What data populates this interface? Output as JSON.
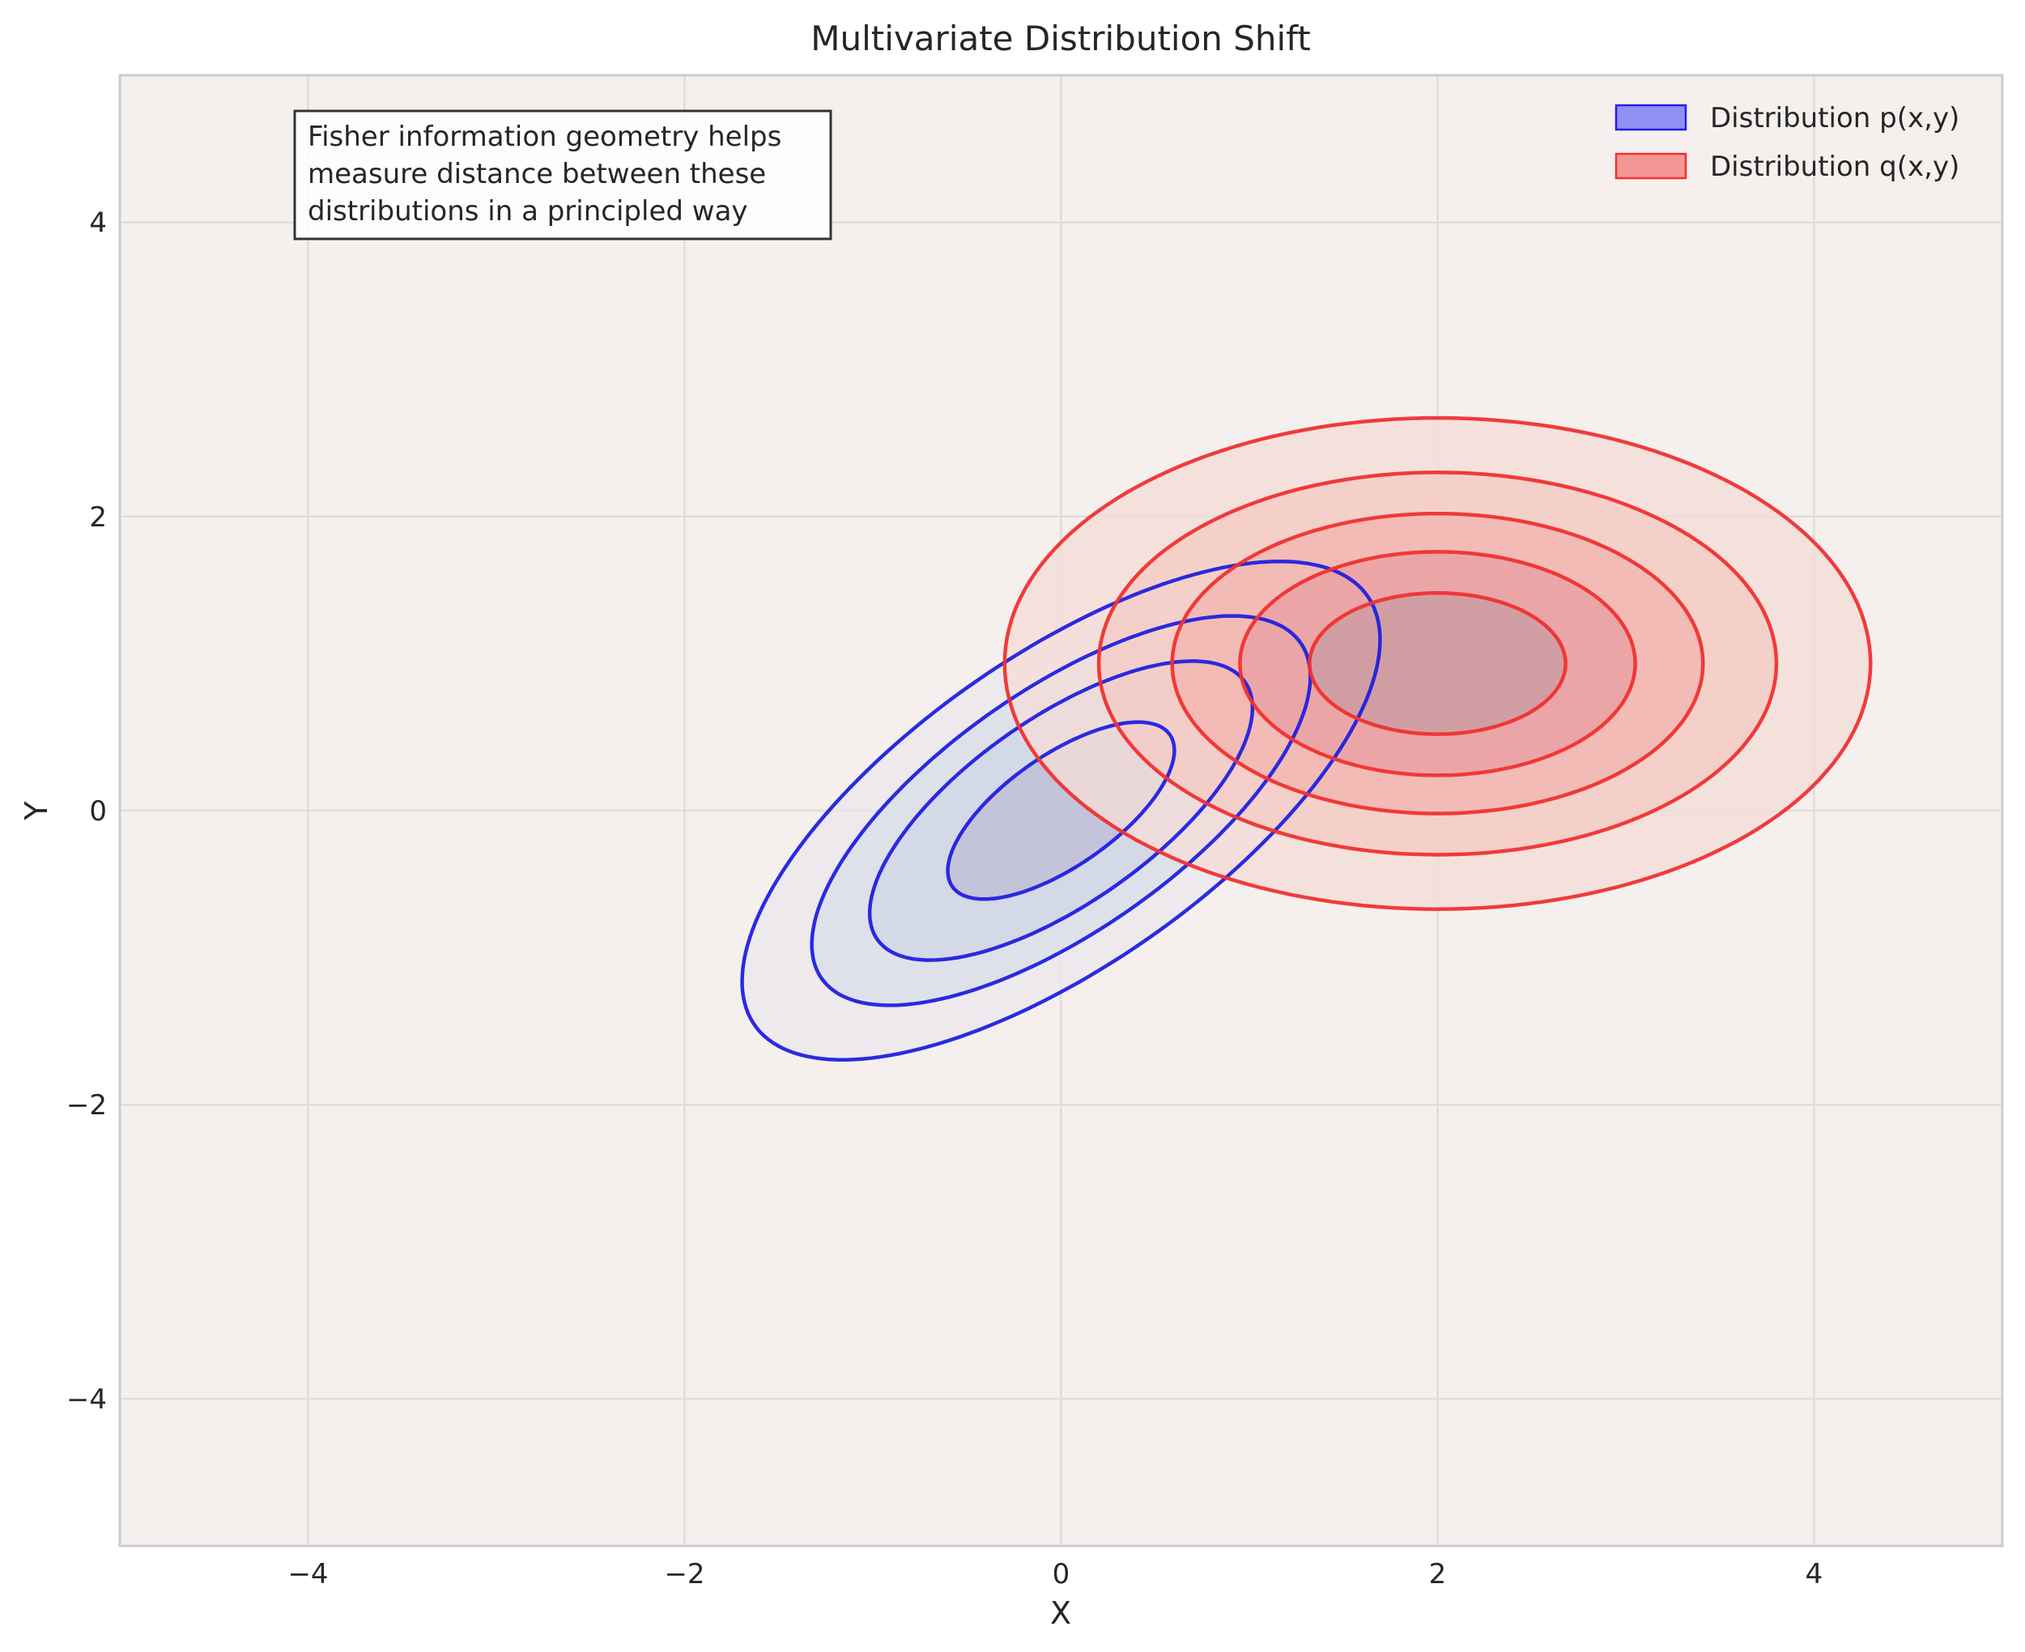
{
  "chart_data": {
    "type": "contour",
    "title": "Multivariate Distribution Shift",
    "xlabel": "X",
    "ylabel": "Y",
    "xlim": [
      -5,
      5
    ],
    "ylim": [
      -5,
      5
    ],
    "xticks": [
      -4,
      -2,
      0,
      2,
      4
    ],
    "yticks": [
      -4,
      -2,
      0,
      2,
      4
    ],
    "x_tick_labels": [
      "−4",
      "−2",
      "0",
      "2",
      "4"
    ],
    "y_tick_labels": [
      "−4",
      "−2",
      "0",
      "2",
      "4"
    ],
    "grid": true,
    "legend_position": "top-right",
    "background_color": "#f5f0ee",
    "series": [
      {
        "name": "Distribution p(x,y)",
        "color": "#2020e0",
        "mean": [
          0,
          0
        ],
        "covariance": [
          [
            1.0,
            0.7
          ],
          [
            0.7,
            1.0
          ]
        ],
        "fill_colors": [
          "#ebe7ec",
          "#dbdfe9",
          "#cfd6e6",
          "#bfbcd6"
        ],
        "contour_levels": [
          {
            "rx": 2.2,
            "ry": 0.95
          },
          {
            "rx": 1.72,
            "ry": 0.74
          },
          {
            "rx": 1.32,
            "ry": 0.57
          },
          {
            "rx": 0.78,
            "ry": 0.34
          }
        ]
      },
      {
        "name": "Distribution q(x,y)",
        "color": "#f03030",
        "mean": [
          2,
          1
        ],
        "covariance": [
          [
            1.5,
            0.0
          ],
          [
            0.0,
            0.5
          ]
        ],
        "fill_colors": [
          "#f5dcd7",
          "#f5cbc4",
          "#f2b5b0",
          "#e99fa1",
          "#c99ca3"
        ],
        "contour_levels": [
          {
            "rx": 2.3,
            "ry": 1.67
          },
          {
            "rx": 1.8,
            "ry": 1.3
          },
          {
            "rx": 1.41,
            "ry": 1.02
          },
          {
            "rx": 1.05,
            "ry": 0.76
          },
          {
            "rx": 0.68,
            "ry": 0.48
          }
        ]
      }
    ],
    "annotation": [
      "Fisher information geometry helps",
      "measure distance between these",
      "distributions in a principled way"
    ]
  }
}
